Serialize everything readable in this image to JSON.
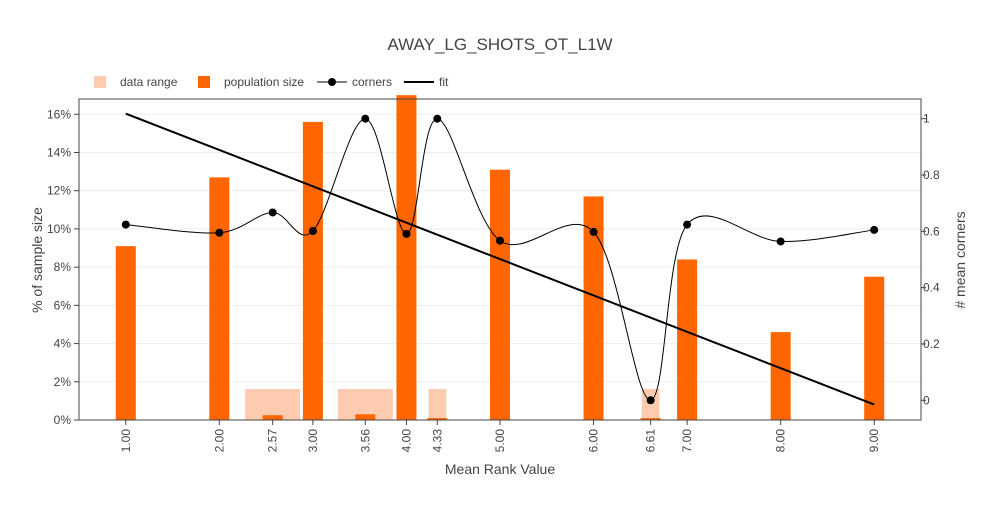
{
  "chart_data": {
    "type": "bar",
    "title": "AWAY_LG_SHOTS_OT_L1W",
    "xlabel": "Mean Rank Value",
    "ylabel": "% of sample size",
    "y2label": "# mean corners",
    "legend": [
      {
        "label": "data range",
        "color": "#fdccb0",
        "kind": "box"
      },
      {
        "label": "population size",
        "color": "#ff6600",
        "kind": "box"
      },
      {
        "label": "corners",
        "color": "#000000",
        "kind": "line-marker"
      },
      {
        "label": "fit",
        "color": "#000000",
        "kind": "line"
      }
    ],
    "x_ticks": [
      1.0,
      2.0,
      2.57,
      3.0,
      3.56,
      4.0,
      4.33,
      5.0,
      6.0,
      6.61,
      7.0,
      8.0,
      9.0
    ],
    "x_tick_labels": [
      "1.00",
      "2.00",
      "2.57",
      "3.00",
      "3.56",
      "4.00",
      "4.33",
      "5.00",
      "6.00",
      "6.61",
      "7.00",
      "8.00",
      "9.00"
    ],
    "xlim": [
      0.5,
      9.5
    ],
    "ylim": [
      0,
      16.8
    ],
    "y_ticks": [
      0,
      2,
      4,
      6,
      8,
      10,
      12,
      14,
      16
    ],
    "y_tick_labels": [
      "0%",
      "2%",
      "4%",
      "6%",
      "8%",
      "10%",
      "12%",
      "14%",
      "16%"
    ],
    "y2lim": [
      -0.07,
      1.07
    ],
    "y2_ticks": [
      0,
      0.2,
      0.4,
      0.6,
      0.8,
      1
    ],
    "y2_tick_labels": [
      "0",
      "0.2",
      "0.4",
      "0.6",
      "0.8",
      "1"
    ],
    "data_range": [
      {
        "x0": 2.27,
        "x1": 2.87,
        "value": 1.65
      },
      {
        "x0": 3.26,
        "x1": 3.86,
        "value": 1.65
      },
      {
        "x0": 4.23,
        "x1": 4.43,
        "value": 1.65
      },
      {
        "x0": 6.51,
        "x1": 6.71,
        "value": 1.65
      }
    ],
    "population_size": [
      {
        "x": 1.0,
        "value": 9.1
      },
      {
        "x": 2.0,
        "value": 12.7
      },
      {
        "x": 2.57,
        "value": 0.25
      },
      {
        "x": 3.0,
        "value": 15.6
      },
      {
        "x": 3.56,
        "value": 0.3
      },
      {
        "x": 4.0,
        "value": 17.0
      },
      {
        "x": 4.33,
        "value": 0.1
      },
      {
        "x": 5.0,
        "value": 13.1
      },
      {
        "x": 6.0,
        "value": 11.7
      },
      {
        "x": 6.61,
        "value": 0.1
      },
      {
        "x": 7.0,
        "value": 8.4
      },
      {
        "x": 8.0,
        "value": 4.6
      },
      {
        "x": 9.0,
        "value": 7.5
      }
    ],
    "corners": [
      {
        "x": 1.0,
        "y": 0.624
      },
      {
        "x": 2.0,
        "y": 0.595
      },
      {
        "x": 2.57,
        "y": 0.667
      },
      {
        "x": 3.0,
        "y": 0.601
      },
      {
        "x": 3.56,
        "y": 1.0
      },
      {
        "x": 4.0,
        "y": 0.591
      },
      {
        "x": 4.33,
        "y": 1.0
      },
      {
        "x": 5.0,
        "y": 0.567
      },
      {
        "x": 6.0,
        "y": 0.598
      },
      {
        "x": 6.61,
        "y": 0.0
      },
      {
        "x": 7.0,
        "y": 0.624
      },
      {
        "x": 8.0,
        "y": 0.564
      },
      {
        "x": 9.0,
        "y": 0.605
      }
    ],
    "fit": {
      "x": [
        1.0,
        9.0
      ],
      "y": [
        1.018,
        -0.015
      ]
    },
    "grid": true,
    "legend_position": "top-left"
  }
}
